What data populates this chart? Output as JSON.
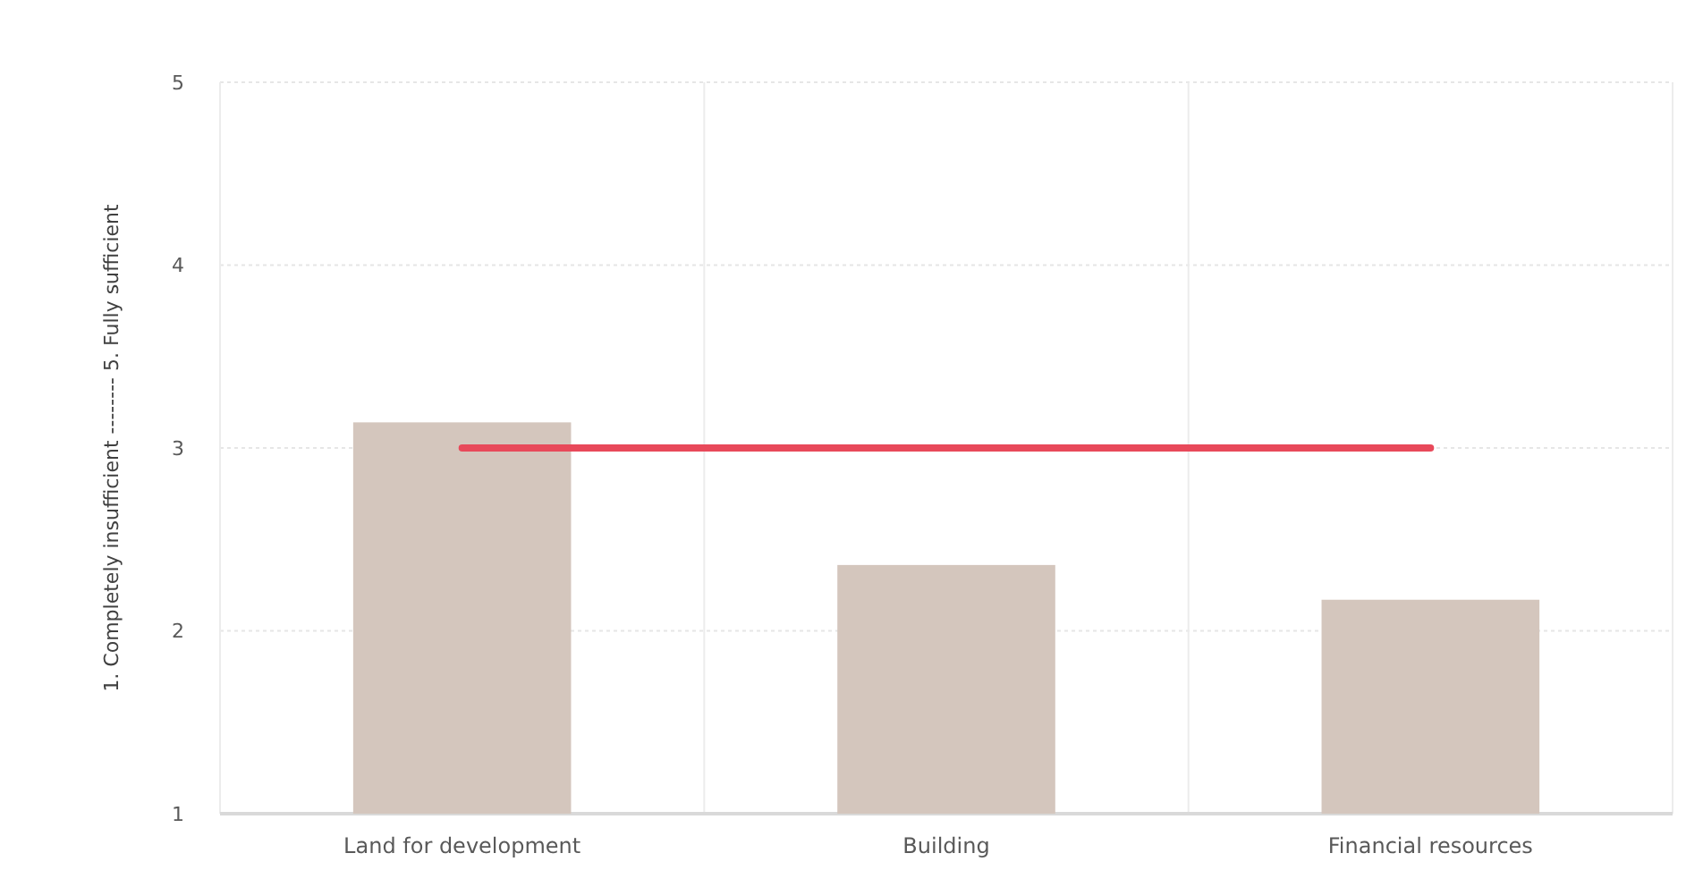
{
  "chart_data": {
    "type": "bar",
    "ylabel": "1. Completely insufficient -------- 5. Fully sufficient",
    "categories": [
      "Land for development",
      "Building",
      "Financial resources"
    ],
    "series": [
      {
        "color": "#d4c6bd",
        "values": [
          3.14,
          2.36,
          2.17
        ]
      },
      {
        "type": "line",
        "color": "#e8495a",
        "values": [
          3,
          3,
          3
        ]
      }
    ],
    "ylim": [
      1,
      5
    ],
    "yticks": [
      1,
      2,
      3,
      4,
      5
    ],
    "grid": true,
    "marker": "none"
  }
}
